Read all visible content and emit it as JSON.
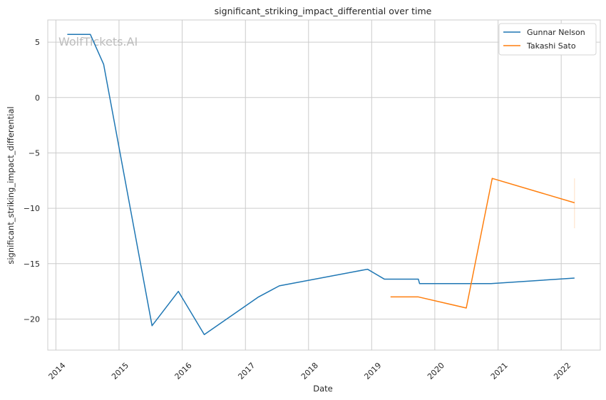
{
  "chart_data": {
    "type": "line",
    "title": "significant_striking_impact_differential over time",
    "xlabel": "Date",
    "ylabel": "significant_striking_impact_differential",
    "xlim": [
      "2013-11-15",
      "2022-08-15"
    ],
    "ylim": [
      -22.8,
      7.0
    ],
    "x_ticks": [
      "2014",
      "2015",
      "2016",
      "2017",
      "2018",
      "2019",
      "2020",
      "2021",
      "2022"
    ],
    "y_ticks": [
      5,
      0,
      -5,
      -10,
      -15,
      -20
    ],
    "y_tick_labels": [
      "5",
      "0",
      "−5",
      "−10",
      "−15",
      "−20"
    ],
    "grid": true,
    "legend_position": "top-right",
    "watermark": "WolfTickets.AI",
    "series": [
      {
        "name": "Gunnar Nelson",
        "color": "#1f77b4",
        "points": [
          {
            "x": "2014-03-08",
            "y": 5.7
          },
          {
            "x": "2014-07-19",
            "y": 5.7
          },
          {
            "x": "2014-10-04",
            "y": 3.0
          },
          {
            "x": "2015-07-11",
            "y": -20.6
          },
          {
            "x": "2015-12-10",
            "y": -17.5
          },
          {
            "x": "2016-05-08",
            "y": -21.4
          },
          {
            "x": "2017-03-18",
            "y": -18.0
          },
          {
            "x": "2017-07-16",
            "y": -17.0
          },
          {
            "x": "2018-12-08",
            "y": -15.5
          },
          {
            "x": "2019-03-16",
            "y": -16.4
          },
          {
            "x": "2019-09-28",
            "y": -16.4
          },
          {
            "x": "2019-10-05",
            "y": -16.8
          },
          {
            "x": "2020-11-21",
            "y": -16.8
          },
          {
            "x": "2022-03-19",
            "y": -16.3
          }
        ]
      },
      {
        "name": "Takashi Sato",
        "color": "#ff7f0e",
        "points": [
          {
            "x": "2019-04-20",
            "y": -18.0
          },
          {
            "x": "2019-09-28",
            "y": -18.0
          },
          {
            "x": "2020-07-01",
            "y": -19.0
          },
          {
            "x": "2020-11-28",
            "y": -7.3
          },
          {
            "x": "2022-03-19",
            "y": -9.5
          }
        ],
        "band": {
          "x": "2022-03-19",
          "y_low": -11.8,
          "y_high": -7.3
        }
      }
    ]
  }
}
